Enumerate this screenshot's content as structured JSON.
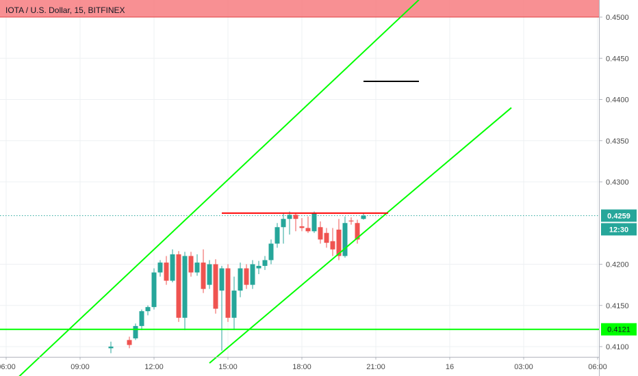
{
  "chart_data": {
    "type": "candlestick",
    "title": "IOTA / U.S. Dollar, 15, BITFINEX",
    "y_ticks": [
      "0.4500",
      "0.4450",
      "0.4400",
      "0.4350",
      "0.4300",
      "0.4200",
      "0.4150",
      "0.4100"
    ],
    "x_ticks": [
      "06:00",
      "09:00",
      "12:00",
      "15:00",
      "18:00",
      "21:00",
      "16",
      "03:00",
      "06:00"
    ],
    "ylim": [
      0.4083,
      0.4522
    ],
    "grid": true,
    "last_price": "0.4259",
    "countdown": "12:30",
    "level_label": "0.4121",
    "colors": {
      "up": "#26a69a",
      "down": "#ef5350",
      "trend": "#00ff00",
      "resistance": "#ff0000",
      "marker": "#000000",
      "zone": "#f77c80"
    },
    "candles": [
      {
        "t": "10:15",
        "o": 0.4098,
        "h": 0.4106,
        "l": 0.4092,
        "c": 0.41
      },
      {
        "t": "11:00",
        "o": 0.4108,
        "h": 0.4112,
        "l": 0.4098,
        "c": 0.4102
      },
      {
        "t": "11:15",
        "o": 0.411,
        "h": 0.4128,
        "l": 0.4108,
        "c": 0.4125
      },
      {
        "t": "11:30",
        "o": 0.4125,
        "h": 0.4145,
        "l": 0.412,
        "c": 0.4143
      },
      {
        "t": "11:45",
        "o": 0.4143,
        "h": 0.415,
        "l": 0.4138,
        "c": 0.4148
      },
      {
        "t": "12:00",
        "o": 0.4148,
        "h": 0.4195,
        "l": 0.4145,
        "c": 0.419
      },
      {
        "t": "12:15",
        "o": 0.419,
        "h": 0.4205,
        "l": 0.4185,
        "c": 0.4202
      },
      {
        "t": "12:30",
        "o": 0.4202,
        "h": 0.421,
        "l": 0.4175,
        "c": 0.418
      },
      {
        "t": "12:45",
        "o": 0.418,
        "h": 0.4218,
        "l": 0.4178,
        "c": 0.4212
      },
      {
        "t": "13:00",
        "o": 0.4212,
        "h": 0.4216,
        "l": 0.413,
        "c": 0.4135
      },
      {
        "t": "13:15",
        "o": 0.4135,
        "h": 0.4215,
        "l": 0.412,
        "c": 0.421
      },
      {
        "t": "13:30",
        "o": 0.421,
        "h": 0.4215,
        "l": 0.4185,
        "c": 0.419
      },
      {
        "t": "13:45",
        "o": 0.419,
        "h": 0.4212,
        "l": 0.4186,
        "c": 0.4202
      },
      {
        "t": "14:00",
        "o": 0.4202,
        "h": 0.4218,
        "l": 0.4165,
        "c": 0.417
      },
      {
        "t": "14:15",
        "o": 0.4175,
        "h": 0.4205,
        "l": 0.417,
        "c": 0.42
      },
      {
        "t": "14:30",
        "o": 0.42,
        "h": 0.4206,
        "l": 0.414,
        "c": 0.4146
      },
      {
        "t": "14:45",
        "o": 0.4168,
        "h": 0.4198,
        "l": 0.4095,
        "c": 0.4195
      },
      {
        "t": "15:00",
        "o": 0.4195,
        "h": 0.42,
        "l": 0.413,
        "c": 0.4135
      },
      {
        "t": "15:15",
        "o": 0.4135,
        "h": 0.4185,
        "l": 0.412,
        "c": 0.4168
      },
      {
        "t": "15:30",
        "o": 0.4168,
        "h": 0.4202,
        "l": 0.416,
        "c": 0.4195
      },
      {
        "t": "15:45",
        "o": 0.4195,
        "h": 0.42,
        "l": 0.417,
        "c": 0.4175
      },
      {
        "t": "16:00",
        "o": 0.4175,
        "h": 0.4205,
        "l": 0.417,
        "c": 0.42
      },
      {
        "t": "16:15",
        "o": 0.4195,
        "h": 0.4204,
        "l": 0.4188,
        "c": 0.4198
      },
      {
        "t": "16:30",
        "o": 0.4198,
        "h": 0.421,
        "l": 0.4193,
        "c": 0.4205
      },
      {
        "t": "16:45",
        "o": 0.4205,
        "h": 0.423,
        "l": 0.42,
        "c": 0.4225
      },
      {
        "t": "17:00",
        "o": 0.4225,
        "h": 0.425,
        "l": 0.422,
        "c": 0.4245
      },
      {
        "t": "17:15",
        "o": 0.4245,
        "h": 0.4262,
        "l": 0.4225,
        "c": 0.4255
      },
      {
        "t": "17:30",
        "o": 0.4255,
        "h": 0.4264,
        "l": 0.4236,
        "c": 0.426
      },
      {
        "t": "17:45",
        "o": 0.426,
        "h": 0.4262,
        "l": 0.424,
        "c": 0.4255
      },
      {
        "t": "18:00",
        "o": 0.4246,
        "h": 0.4256,
        "l": 0.424,
        "c": 0.4244
      },
      {
        "t": "18:15",
        "o": 0.4244,
        "h": 0.4258,
        "l": 0.4238,
        "c": 0.424
      },
      {
        "t": "18:30",
        "o": 0.424,
        "h": 0.4264,
        "l": 0.4238,
        "c": 0.4262
      },
      {
        "t": "18:45",
        "o": 0.4245,
        "h": 0.4252,
        "l": 0.4225,
        "c": 0.423
      },
      {
        "t": "19:00",
        "o": 0.4238,
        "h": 0.4244,
        "l": 0.422,
        "c": 0.4226
      },
      {
        "t": "19:15",
        "o": 0.4228,
        "h": 0.4244,
        "l": 0.421,
        "c": 0.4218
      },
      {
        "t": "19:30",
        "o": 0.4242,
        "h": 0.4255,
        "l": 0.4205,
        "c": 0.421
      },
      {
        "t": "19:45",
        "o": 0.421,
        "h": 0.4258,
        "l": 0.4208,
        "c": 0.425
      },
      {
        "t": "20:00",
        "o": 0.4253,
        "h": 0.4257,
        "l": 0.4248,
        "c": 0.4252
      },
      {
        "t": "20:15",
        "o": 0.425,
        "h": 0.4254,
        "l": 0.4225,
        "c": 0.423
      },
      {
        "t": "20:30",
        "o": 0.4255,
        "h": 0.4262,
        "l": 0.4254,
        "c": 0.4259
      }
    ],
    "drawings": {
      "channel_upper": {
        "t1": "06:30",
        "p1": 0.4063,
        "t2": "22:45",
        "p2": 0.4521
      },
      "channel_lower": {
        "t1": "14:15",
        "p1": 0.408,
        "t2": "02:30",
        "p2": 0.439
      },
      "resistance": {
        "t1": "14:45",
        "t2": "21:30",
        "price": 0.4262
      },
      "marker_line": {
        "t1": "20:30",
        "t2": "22:45",
        "price": 0.4422
      },
      "support_level": {
        "price": 0.4121
      },
      "top_zone": {
        "from": 0.45,
        "to": 0.4527
      }
    }
  }
}
